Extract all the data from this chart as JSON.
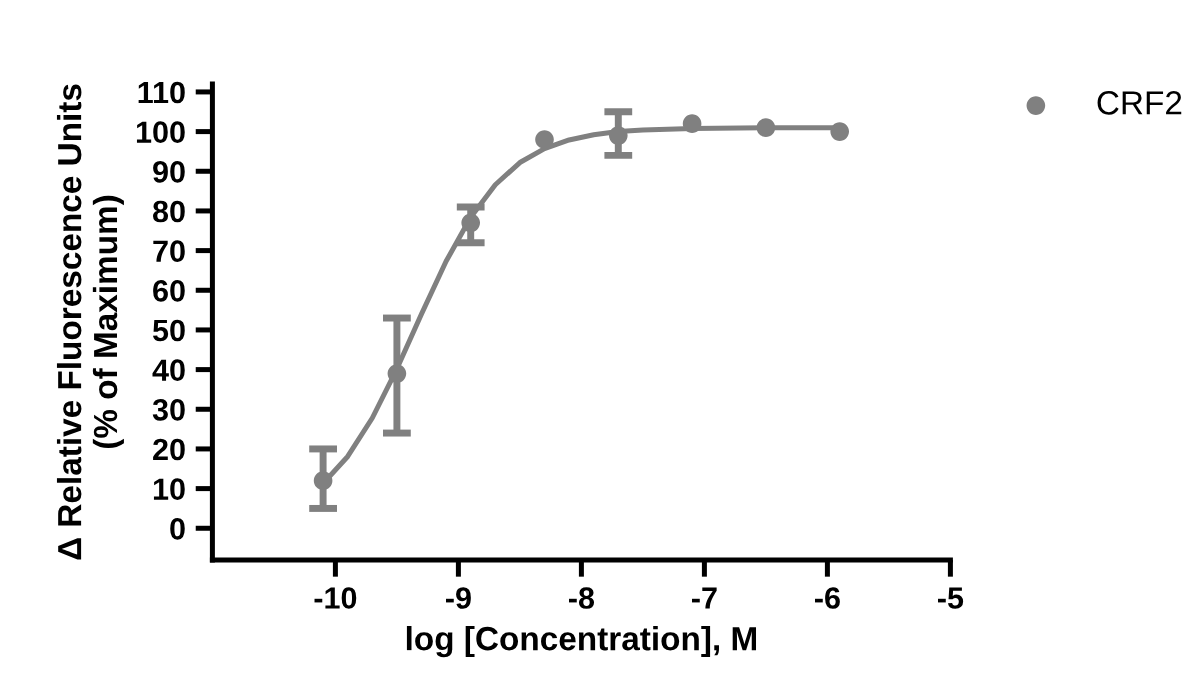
{
  "chart_data": {
    "type": "scatter",
    "xlabel": "log [Concentration], M",
    "ylabel": "Δ Relative Fluorescence Units\n(% of Maximum)",
    "xlim": [
      -11,
      -5
    ],
    "xticks": [
      -10,
      -9,
      -8,
      -7,
      -6,
      -5
    ],
    "ylim": [
      -8,
      112
    ],
    "yticks": [
      0,
      10,
      20,
      30,
      40,
      50,
      60,
      70,
      80,
      90,
      100,
      110
    ],
    "grid": false,
    "legend": "top right",
    "series": [
      {
        "name": "CRF2",
        "color": "#808080",
        "marker": "circle",
        "x": [
          -10.1,
          -9.5,
          -8.9,
          -8.3,
          -7.7,
          -7.1,
          -6.5,
          -5.9
        ],
        "values": [
          12,
          39,
          77,
          98,
          99,
          102,
          101,
          100
        ],
        "errors": [
          [
            5,
            20
          ],
          [
            24,
            53
          ],
          [
            72,
            81
          ],
          null,
          [
            94,
            105
          ],
          null,
          null,
          null
        ]
      },
      {
        "type": "line",
        "color": "#808080",
        "marker": "none",
        "line_style": "solid",
        "x": [
          -10.1,
          -9.9,
          -9.7,
          -9.5,
          -9.3,
          -9.1,
          -8.9,
          -8.7,
          -8.5,
          -8.3,
          -8.1,
          -7.9,
          -7.7,
          -7.5,
          -7.1,
          -6.5,
          -5.9
        ],
        "values": [
          11.3,
          18.1,
          27.8,
          40.2,
          54.0,
          67.3,
          78.4,
          86.6,
          92.2,
          95.7,
          97.9,
          99.2,
          100.0,
          100.4,
          100.8,
          101.0,
          101.0
        ]
      }
    ]
  }
}
